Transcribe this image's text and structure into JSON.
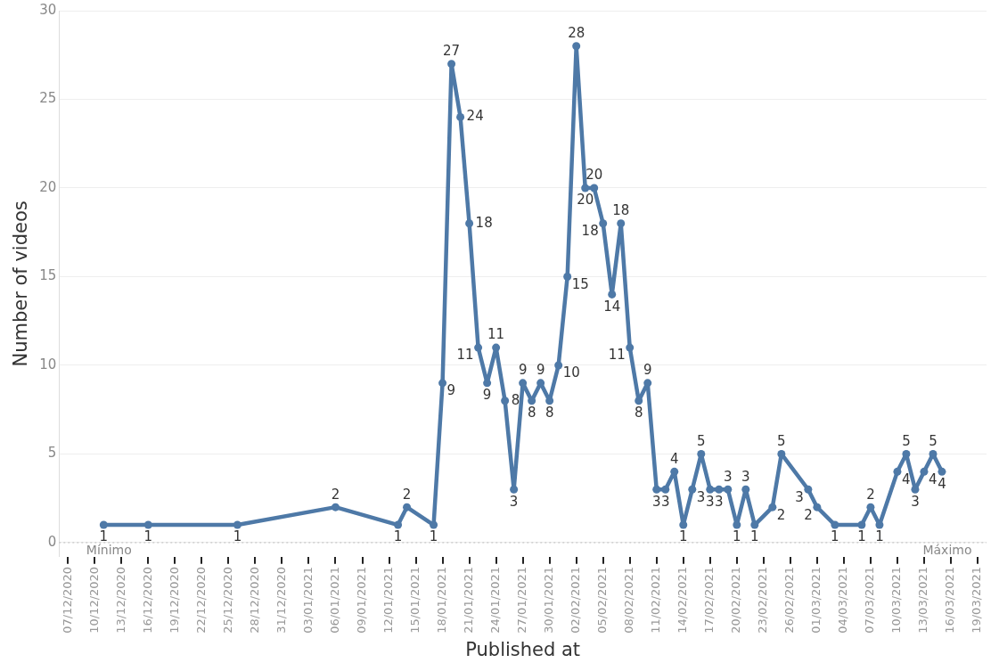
{
  "chart_data": {
    "type": "line",
    "xlabel": "Published at",
    "ylabel": "Number of videos",
    "x": [
      "2020-12-11",
      "2020-12-16",
      "2020-12-26",
      "2021-01-06",
      "2021-01-13",
      "2021-01-14",
      "2021-01-17",
      "2021-01-18",
      "2021-01-19",
      "2021-01-20",
      "2021-01-21",
      "2021-01-22",
      "2021-01-23",
      "2021-01-24",
      "2021-01-25",
      "2021-01-26",
      "2021-01-27",
      "2021-01-28",
      "2021-01-29",
      "2021-01-30",
      "2021-01-31",
      "2021-02-01",
      "2021-02-02",
      "2021-02-03",
      "2021-02-04",
      "2021-02-05",
      "2021-02-06",
      "2021-02-07",
      "2021-02-08",
      "2021-02-09",
      "2021-02-10",
      "2021-02-11",
      "2021-02-12",
      "2021-02-13",
      "2021-02-14",
      "2021-02-15",
      "2021-02-16",
      "2021-02-17",
      "2021-02-18",
      "2021-02-19",
      "2021-02-20",
      "2021-02-21",
      "2021-02-22",
      "2021-02-24",
      "2021-02-25",
      "2021-02-28",
      "2021-03-01",
      "2021-03-03",
      "2021-03-06",
      "2021-03-07",
      "2021-03-08",
      "2021-03-10",
      "2021-03-11",
      "2021-03-12",
      "2021-03-13",
      "2021-03-14",
      "2021-03-15"
    ],
    "series": [
      {
        "color": "#4e79a7",
        "values": [
          1,
          1,
          1,
          2,
          1,
          2,
          1,
          9,
          27,
          24,
          18,
          11,
          9,
          11,
          8,
          3,
          9,
          8,
          9,
          8,
          10,
          15,
          28,
          20,
          20,
          18,
          14,
          18,
          11,
          8,
          9,
          3,
          3,
          4,
          1,
          3,
          5,
          3,
          3,
          3,
          1,
          3,
          1,
          2,
          5,
          3,
          2,
          1,
          1,
          2,
          1,
          4,
          5,
          3,
          4,
          5,
          4
        ]
      }
    ],
    "xlim": [
      "2020-12-06",
      "2021-03-20"
    ],
    "xticks": [
      {
        "value": "2020-12-07",
        "label": "07/12/2020"
      },
      {
        "value": "2020-12-10",
        "label": "10/12/2020"
      },
      {
        "value": "2020-12-13",
        "label": "13/12/2020"
      },
      {
        "value": "2020-12-16",
        "label": "16/12/2020"
      },
      {
        "value": "2020-12-19",
        "label": "19/12/2020"
      },
      {
        "value": "2020-12-22",
        "label": "22/12/2020"
      },
      {
        "value": "2020-12-25",
        "label": "25/12/2020"
      },
      {
        "value": "2020-12-28",
        "label": "28/12/2020"
      },
      {
        "value": "2020-12-31",
        "label": "31/12/2020"
      },
      {
        "value": "2021-01-03",
        "label": "03/01/2021"
      },
      {
        "value": "2021-01-06",
        "label": "06/01/2021"
      },
      {
        "value": "2021-01-09",
        "label": "09/01/2021"
      },
      {
        "value": "2021-01-12",
        "label": "12/01/2021"
      },
      {
        "value": "2021-01-15",
        "label": "15/01/2021"
      },
      {
        "value": "2021-01-18",
        "label": "18/01/2021"
      },
      {
        "value": "2021-01-21",
        "label": "21/01/2021"
      },
      {
        "value": "2021-01-24",
        "label": "24/01/2021"
      },
      {
        "value": "2021-01-27",
        "label": "27/01/2021"
      },
      {
        "value": "2021-01-30",
        "label": "30/01/2021"
      },
      {
        "value": "2021-02-02",
        "label": "02/02/2021"
      },
      {
        "value": "2021-02-05",
        "label": "05/02/2021"
      },
      {
        "value": "2021-02-08",
        "label": "08/02/2021"
      },
      {
        "value": "2021-02-11",
        "label": "11/02/2021"
      },
      {
        "value": "2021-02-14",
        "label": "14/02/2021"
      },
      {
        "value": "2021-02-17",
        "label": "17/02/2021"
      },
      {
        "value": "2021-02-20",
        "label": "20/02/2021"
      },
      {
        "value": "2021-02-23",
        "label": "23/02/2021"
      },
      {
        "value": "2021-02-26",
        "label": "26/02/2021"
      },
      {
        "value": "2021-03-01",
        "label": "01/03/2021"
      },
      {
        "value": "2021-03-04",
        "label": "04/03/2021"
      },
      {
        "value": "2021-03-07",
        "label": "07/03/2021"
      },
      {
        "value": "2021-03-10",
        "label": "10/03/2021"
      },
      {
        "value": "2021-03-13",
        "label": "13/03/2021"
      },
      {
        "value": "2021-03-16",
        "label": "16/03/2021"
      },
      {
        "value": "2021-03-19",
        "label": "19/03/2021"
      }
    ],
    "ylim": [
      -0.8,
      30
    ],
    "yticks": [
      0,
      5,
      10,
      15,
      20,
      25,
      30
    ],
    "grid": "y",
    "legend": false,
    "marker": "circle",
    "line_style": "solid",
    "data_labels": true,
    "ref_lines": [
      {
        "axis": "y",
        "value": 0,
        "color": "#bbbbbb",
        "line_style": "dotted"
      }
    ],
    "annotations": [
      {
        "text": "Mínimo",
        "x": "2020-12-11",
        "y": 0
      },
      {
        "text": "Máximo",
        "x": "2021-03-15",
        "y": 0
      }
    ]
  }
}
